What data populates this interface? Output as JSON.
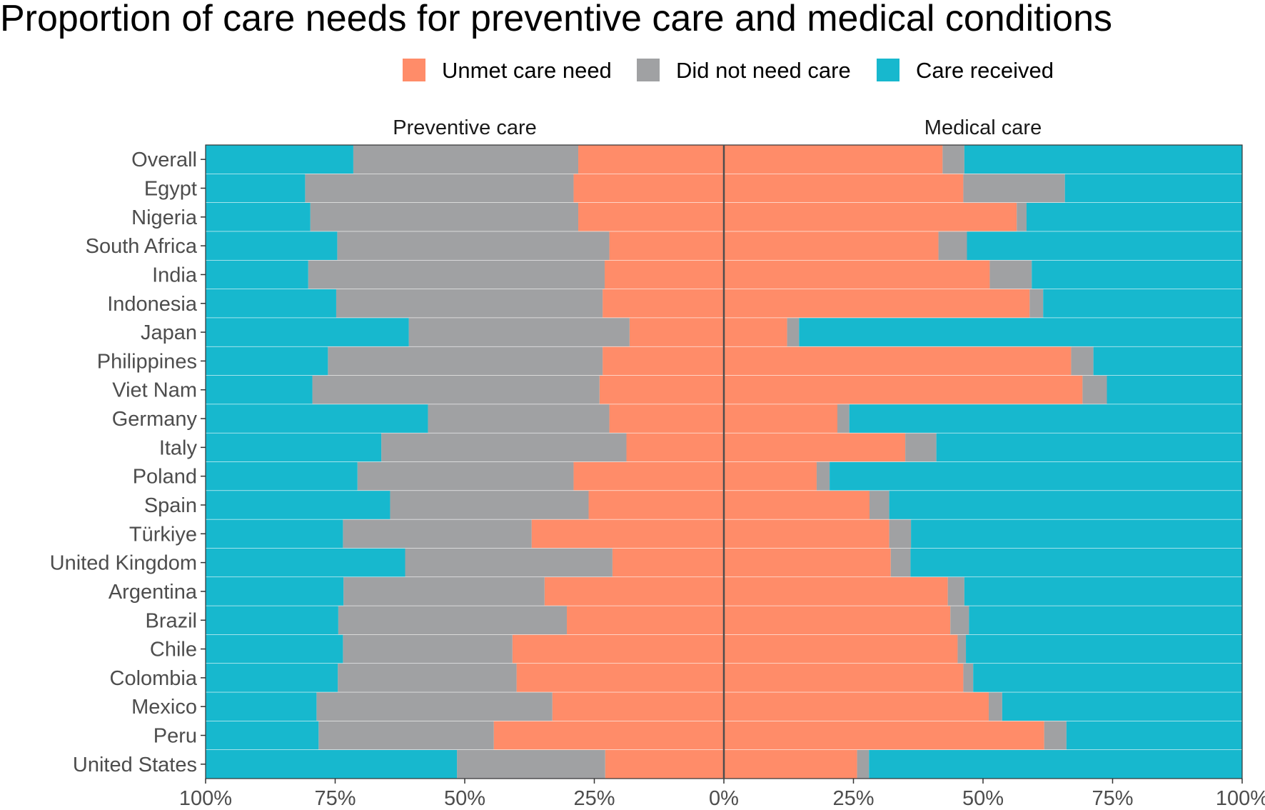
{
  "chart_data": {
    "type": "bar",
    "subtype": "diverging-stacked-horizontal",
    "title": "Proportion of care needs for preventive care and medical conditions",
    "legend": {
      "placement": "top",
      "entries": [
        {
          "name": "Unmet care need",
          "color": "#ff8c69"
        },
        {
          "name": "Did not need care",
          "color": "#a0a1a3"
        },
        {
          "name": "Care received",
          "color": "#17b8ce"
        }
      ]
    },
    "facets": [
      {
        "label": "Preventive care",
        "direction": "left"
      },
      {
        "label": "Medical care",
        "direction": "right"
      }
    ],
    "tick_values": [
      -100,
      -75,
      -50,
      -25,
      0,
      25,
      50,
      75,
      100
    ],
    "tick_labels": [
      "100%",
      "75%",
      "50%",
      "25%",
      "0%",
      "25%",
      "50%",
      "75%",
      "100%"
    ],
    "xlim": [
      -100,
      100
    ],
    "grid": false,
    "categories": [
      "Overall",
      "Egypt",
      "Nigeria",
      "South Africa",
      "India",
      "Indonesia",
      "Japan",
      "Philippines",
      "Viet Nam",
      "Germany",
      "Italy",
      "Poland",
      "Spain",
      "Türkiye",
      "United Kingdom",
      "Argentina",
      "Brazil",
      "Chile",
      "Colombia",
      "Mexico",
      "Peru",
      "United States"
    ],
    "series": {
      "preventive_care": {
        "unmet_care_need": [
          28.1,
          29.0,
          28.1,
          22.1,
          23.0,
          23.4,
          18.2,
          23.4,
          24.0,
          22.1,
          18.8,
          29.0,
          26.1,
          37.1,
          21.5,
          34.6,
          30.3,
          40.8,
          40.0,
          33.1,
          44.4,
          22.9
        ],
        "did_not_need_care": [
          43.4,
          51.8,
          51.7,
          52.5,
          57.2,
          51.4,
          42.6,
          53.0,
          55.4,
          35.0,
          47.3,
          41.7,
          38.3,
          36.4,
          40.0,
          38.8,
          44.1,
          32.7,
          34.5,
          45.5,
          33.8,
          28.6
        ],
        "care_received": [
          28.5,
          19.2,
          20.2,
          25.4,
          19.8,
          25.2,
          39.2,
          23.6,
          20.6,
          42.9,
          33.9,
          29.3,
          35.6,
          26.5,
          38.5,
          26.6,
          25.6,
          26.5,
          25.5,
          21.4,
          21.8,
          48.5
        ]
      },
      "medical_care": {
        "unmet_care_need": [
          42.2,
          46.2,
          56.5,
          41.4,
          51.3,
          59.0,
          12.2,
          67.0,
          69.2,
          21.9,
          35.0,
          17.9,
          28.1,
          31.9,
          32.2,
          43.2,
          43.7,
          45.1,
          46.2,
          51.1,
          61.8,
          25.7
        ],
        "did_not_need_care": [
          4.2,
          19.6,
          1.9,
          5.5,
          8.1,
          2.6,
          2.3,
          4.3,
          4.7,
          2.3,
          6.0,
          2.5,
          3.8,
          4.2,
          3.8,
          3.2,
          3.6,
          1.6,
          1.9,
          2.6,
          4.3,
          2.3
        ],
        "care_received": [
          53.6,
          34.2,
          41.6,
          53.1,
          40.6,
          38.4,
          85.5,
          28.7,
          26.1,
          75.8,
          59.0,
          79.6,
          68.1,
          63.9,
          64.0,
          53.6,
          52.7,
          53.3,
          51.9,
          46.3,
          33.9,
          72.0
        ]
      }
    }
  }
}
